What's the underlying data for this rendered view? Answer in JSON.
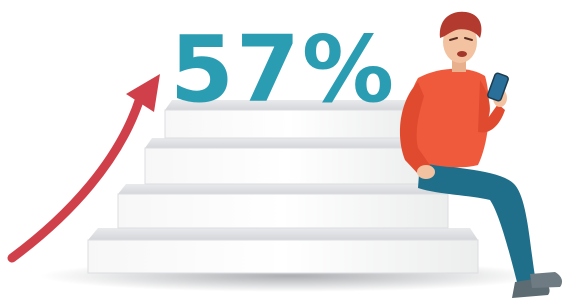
{
  "headline": "57%"
}
